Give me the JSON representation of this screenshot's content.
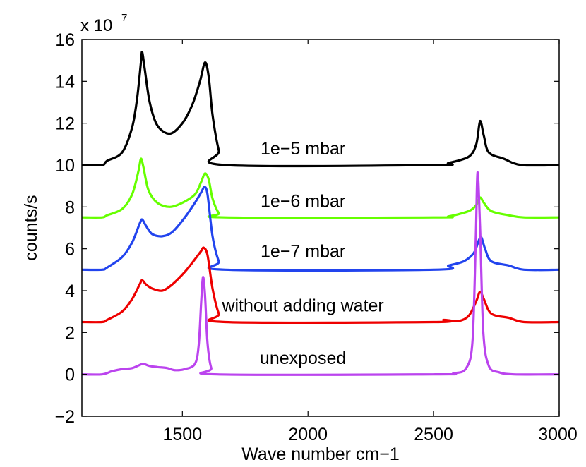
{
  "chart_data": {
    "type": "line",
    "title": "",
    "xlabel": "Wave number cm−1",
    "ylabel": "counts/s",
    "y_multiplier": {
      "base": "x 10",
      "exponent": "7"
    },
    "xlim": [
      1100,
      3000
    ],
    "ylim": [
      -2,
      16
    ],
    "xticks": [
      1500,
      2000,
      2500,
      3000
    ],
    "yticks": [
      -2,
      0,
      2,
      4,
      6,
      8,
      10,
      12,
      14,
      16
    ],
    "xtick_labels": [
      "1500",
      "2000",
      "2500",
      "3000"
    ],
    "ytick_labels": [
      "−2",
      "0",
      "2",
      "4",
      "6",
      "8",
      "10",
      "12",
      "14",
      "16"
    ],
    "grid": false,
    "series": [
      {
        "name": "1e−5 mbar",
        "color": "#000000",
        "baseline": 10,
        "peaks": [
          {
            "x": 1340,
            "height": 4.8,
            "width": 28
          },
          {
            "x": 1430,
            "height": 0.7,
            "width": 90
          },
          {
            "x": 1530,
            "height": 1.6,
            "width": 80
          },
          {
            "x": 1590,
            "height": 3.2,
            "width": 22
          },
          {
            "x": 2685,
            "height": 2.0,
            "width": 22
          },
          {
            "x": 2760,
            "height": 0.15,
            "width": 60
          }
        ],
        "points": [
          [
            1100,
            10
          ],
          [
            1180,
            10
          ],
          [
            1200,
            10.2
          ],
          [
            1260,
            10.6
          ],
          [
            1300,
            11.8
          ],
          [
            1320,
            13.2
          ],
          [
            1335,
            14.9
          ],
          [
            1340,
            15.4
          ],
          [
            1350,
            14.6
          ],
          [
            1370,
            13
          ],
          [
            1400,
            11.9
          ],
          [
            1450,
            11.5
          ],
          [
            1500,
            12
          ],
          [
            1540,
            12.9
          ],
          [
            1570,
            14
          ],
          [
            1590,
            14.9
          ],
          [
            1605,
            14.2
          ],
          [
            1620,
            12.4
          ],
          [
            1645,
            10.7
          ],
          [
            1670,
            10
          ],
          [
            2500,
            10
          ],
          [
            2560,
            10.1
          ],
          [
            2640,
            10.4
          ],
          [
            2670,
            11
          ],
          [
            2685,
            12.1
          ],
          [
            2700,
            11.4
          ],
          [
            2720,
            10.6
          ],
          [
            2780,
            10.3
          ],
          [
            2850,
            10
          ],
          [
            3000,
            10
          ]
        ],
        "label": {
          "text": "1e−5 mbar",
          "x": 1980,
          "y": 10.5
        }
      },
      {
        "name": "1e−6 mbar",
        "color": "#66ff00",
        "baseline": 7.5,
        "points": [
          [
            1100,
            7.5
          ],
          [
            1180,
            7.5
          ],
          [
            1200,
            7.6
          ],
          [
            1260,
            7.9
          ],
          [
            1300,
            8.6
          ],
          [
            1325,
            9.7
          ],
          [
            1335,
            10.3
          ],
          [
            1345,
            9.9
          ],
          [
            1365,
            8.8
          ],
          [
            1400,
            8.2
          ],
          [
            1450,
            8.0
          ],
          [
            1500,
            8.2
          ],
          [
            1550,
            8.6
          ],
          [
            1575,
            9.2
          ],
          [
            1590,
            9.6
          ],
          [
            1605,
            9.3
          ],
          [
            1620,
            8.4
          ],
          [
            1645,
            7.7
          ],
          [
            1670,
            7.5
          ],
          [
            2500,
            7.5
          ],
          [
            2560,
            7.55
          ],
          [
            2640,
            7.8
          ],
          [
            2670,
            8.1
          ],
          [
            2685,
            8.45
          ],
          [
            2700,
            8.2
          ],
          [
            2730,
            7.8
          ],
          [
            2800,
            7.6
          ],
          [
            2860,
            7.5
          ],
          [
            3000,
            7.5
          ]
        ],
        "label": {
          "text": "1e−6 mbar",
          "x": 1980,
          "y": 8.0
        }
      },
      {
        "name": "1e−7 mbar",
        "color": "#2244ee",
        "baseline": 5,
        "points": [
          [
            1100,
            5
          ],
          [
            1180,
            5
          ],
          [
            1200,
            5.1
          ],
          [
            1260,
            5.6
          ],
          [
            1300,
            6.3
          ],
          [
            1330,
            7.2
          ],
          [
            1340,
            7.4
          ],
          [
            1355,
            7.1
          ],
          [
            1380,
            6.7
          ],
          [
            1420,
            6.6
          ],
          [
            1460,
            6.8
          ],
          [
            1510,
            7.5
          ],
          [
            1550,
            8.2
          ],
          [
            1575,
            8.7
          ],
          [
            1588,
            8.95
          ],
          [
            1600,
            8.6
          ],
          [
            1620,
            6.6
          ],
          [
            1645,
            5.4
          ],
          [
            1670,
            5
          ],
          [
            2500,
            5
          ],
          [
            2560,
            5.2
          ],
          [
            2620,
            5.4
          ],
          [
            2660,
            5.8
          ],
          [
            2680,
            6.4
          ],
          [
            2690,
            6.55
          ],
          [
            2705,
            6.0
          ],
          [
            2730,
            5.4
          ],
          [
            2800,
            5.2
          ],
          [
            2860,
            5
          ],
          [
            3000,
            5
          ]
        ],
        "label": {
          "text": "1e−7 mbar",
          "x": 1980,
          "y": 5.6
        }
      },
      {
        "name": "without adding water",
        "color": "#ee0000",
        "baseline": 2.5,
        "points": [
          [
            1100,
            2.5
          ],
          [
            1180,
            2.5
          ],
          [
            1200,
            2.6
          ],
          [
            1260,
            3.0
          ],
          [
            1300,
            3.6
          ],
          [
            1330,
            4.3
          ],
          [
            1340,
            4.5
          ],
          [
            1355,
            4.3
          ],
          [
            1380,
            4.1
          ],
          [
            1420,
            4.0
          ],
          [
            1460,
            4.3
          ],
          [
            1510,
            4.9
          ],
          [
            1550,
            5.5
          ],
          [
            1575,
            5.9
          ],
          [
            1585,
            6.05
          ],
          [
            1600,
            5.7
          ],
          [
            1620,
            4.1
          ],
          [
            1645,
            2.9
          ],
          [
            1670,
            2.5
          ],
          [
            2500,
            2.5
          ],
          [
            2540,
            2.6
          ],
          [
            2600,
            2.55
          ],
          [
            2640,
            2.8
          ],
          [
            2670,
            3.5
          ],
          [
            2685,
            3.95
          ],
          [
            2700,
            3.6
          ],
          [
            2730,
            2.9
          ],
          [
            2800,
            2.7
          ],
          [
            2860,
            2.5
          ],
          [
            3000,
            2.5
          ]
        ],
        "label": {
          "text": "without adding water",
          "x": 1980,
          "y": 3.0
        }
      },
      {
        "name": "unexposed",
        "color": "#bb44ee",
        "baseline": 0,
        "points": [
          [
            1100,
            0
          ],
          [
            1180,
            0
          ],
          [
            1220,
            0.15
          ],
          [
            1260,
            0.25
          ],
          [
            1300,
            0.3
          ],
          [
            1330,
            0.45
          ],
          [
            1345,
            0.5
          ],
          [
            1370,
            0.4
          ],
          [
            1400,
            0.35
          ],
          [
            1440,
            0.3
          ],
          [
            1470,
            0.2
          ],
          [
            1510,
            0.25
          ],
          [
            1550,
            0.5
          ],
          [
            1565,
            1.4
          ],
          [
            1575,
            3.5
          ],
          [
            1582,
            4.65
          ],
          [
            1590,
            3.8
          ],
          [
            1600,
            1.5
          ],
          [
            1615,
            0.3
          ],
          [
            1640,
            0
          ],
          [
            2500,
            0
          ],
          [
            2580,
            0.05
          ],
          [
            2630,
            0.3
          ],
          [
            2655,
            1.6
          ],
          [
            2668,
            6.5
          ],
          [
            2675,
            9.65
          ],
          [
            2685,
            7.0
          ],
          [
            2698,
            2.0
          ],
          [
            2720,
            0.4
          ],
          [
            2760,
            0.1
          ],
          [
            2820,
            0
          ],
          [
            3000,
            0
          ]
        ],
        "label": {
          "text": "unexposed",
          "x": 1980,
          "y": 0.5
        }
      }
    ]
  }
}
